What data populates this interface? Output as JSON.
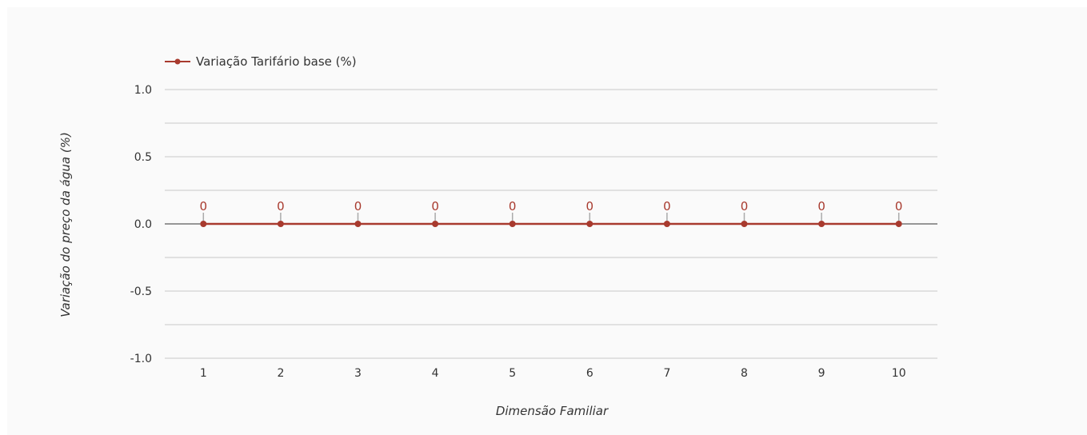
{
  "chart_data": {
    "type": "line",
    "title": "",
    "xlabel": "Dimensão Familiar",
    "ylabel": "Variação do preço da água (%)",
    "categories": [
      "1",
      "2",
      "3",
      "4",
      "5",
      "6",
      "7",
      "8",
      "9",
      "10"
    ],
    "series": [
      {
        "name": "Variação Tarifário base (%)",
        "values": [
          0,
          0,
          0,
          0,
          0,
          0,
          0,
          0,
          0,
          0
        ],
        "color": "#a83a2e"
      }
    ],
    "data_labels": [
      "0",
      "0",
      "0",
      "0",
      "0",
      "0",
      "0",
      "0",
      "0",
      "0"
    ],
    "ylim": [
      -1.0,
      1.0
    ],
    "yticks": [
      "1.0",
      "0.5",
      "0.0",
      "-0.5",
      "-1.0"
    ],
    "ytick_values": [
      1.0,
      0.5,
      0.0,
      -0.5,
      -1.0
    ],
    "grid": true,
    "legend_position": "top-left",
    "colors": {
      "background": "#fafafa",
      "grid": "#c8c8c8",
      "zero_line": "#333333",
      "label_stem": "#aaaaaa"
    }
  }
}
